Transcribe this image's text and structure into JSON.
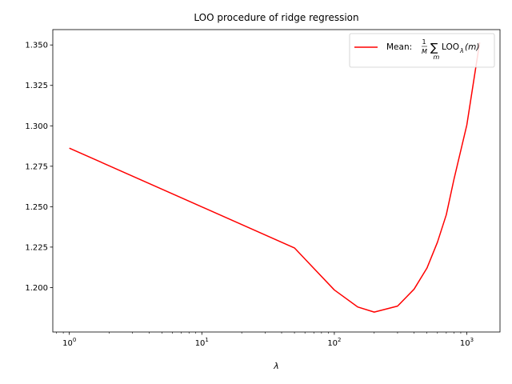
{
  "chart_data": {
    "type": "line",
    "title": "LOO procedure of ridge regression",
    "xlabel": "λ",
    "ylabel": "",
    "x_scale": "log",
    "xlim": [
      0.75,
      1780
    ],
    "ylim": [
      1.1725,
      1.3595
    ],
    "x_ticks": [
      {
        "value": 1,
        "base": "10",
        "exp": "0"
      },
      {
        "value": 10,
        "base": "10",
        "exp": "1"
      },
      {
        "value": 100,
        "base": "10",
        "exp": "2"
      },
      {
        "value": 1000,
        "base": "10",
        "exp": "3"
      }
    ],
    "y_ticks": [
      {
        "value": 1.2,
        "label": "1.200"
      },
      {
        "value": 1.225,
        "label": "1.225"
      },
      {
        "value": 1.25,
        "label": "1.250"
      },
      {
        "value": 1.275,
        "label": "1.275"
      },
      {
        "value": 1.3,
        "label": "1.300"
      },
      {
        "value": 1.325,
        "label": "1.325"
      },
      {
        "value": 1.35,
        "label": "1.350"
      }
    ],
    "grid": false,
    "legend_position": "top-right",
    "series": [
      {
        "name": "Mean: 1/M ∑m LOOλ(m)",
        "color": "#ff0000",
        "x": [
          1,
          50,
          100,
          150,
          200,
          300,
          400,
          500,
          600,
          700,
          800,
          1000,
          1250
        ],
        "y": [
          1.2862,
          1.2245,
          1.1985,
          1.188,
          1.1848,
          1.1885,
          1.199,
          1.212,
          1.228,
          1.245,
          1.267,
          1.3005,
          1.3515
        ]
      }
    ]
  },
  "legend": {
    "prefix": "Mean: ",
    "frac_num": "1",
    "frac_den": "M",
    "sum_symbol": "∑",
    "sum_index": "m",
    "loo": "LOO",
    "loo_sub": "λ",
    "arg": "(m)"
  }
}
